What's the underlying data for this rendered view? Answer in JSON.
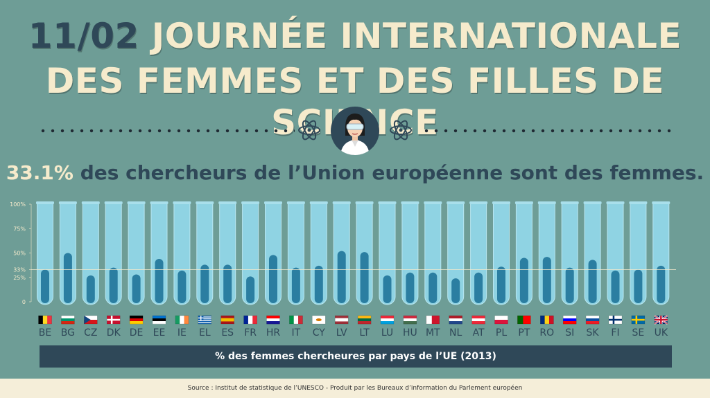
{
  "header": {
    "date": "11/02",
    "title_line1": "JOURNÉE INTERNATIONALE",
    "title_line2": "DES FEMMES ET DES FILLES DE SCIENCE"
  },
  "subtitle": {
    "percent": "33.1%",
    "text": " des chercheurs de l’Union européenne sont des femmes."
  },
  "footer_label": "% des femmes chercheures par pays de l’UE (2013)",
  "source": "Source : Institut de statistique de l’UNESCO - Produit par les Bureaux d’information du Parlement européen",
  "colors": {
    "background": "#6e9d96",
    "title": "#f6ebcc",
    "dark": "#2f4858",
    "tube": "#8fd3e3",
    "liquid": "#2b7ea1"
  },
  "chart_data": {
    "type": "bar",
    "categories": [
      "BE",
      "BG",
      "CZ",
      "DK",
      "DE",
      "EE",
      "IE",
      "EL",
      "ES",
      "FR",
      "HR",
      "IT",
      "CY",
      "LV",
      "LT",
      "LU",
      "HU",
      "MT",
      "NL",
      "AT",
      "PL",
      "PT",
      "RO",
      "SI",
      "SK",
      "FI",
      "SE",
      "UK"
    ],
    "values": [
      33,
      50,
      27,
      35,
      28,
      44,
      32,
      38,
      38,
      26,
      48,
      35,
      37,
      52,
      51,
      27,
      30,
      30,
      24,
      30,
      36,
      45,
      46,
      35,
      43,
      32,
      33,
      37
    ],
    "ylim": [
      0,
      100
    ],
    "yticks": [
      0,
      25,
      33,
      50,
      75,
      100
    ],
    "ytick_labels": [
      "0",
      "25%",
      "33%",
      "50%",
      "75%",
      "100%"
    ],
    "reference_line": 33,
    "flags": [
      {
        "type": "v",
        "colors": [
          "#000000",
          "#fdda24",
          "#ef3340"
        ]
      },
      {
        "type": "h",
        "colors": [
          "#ffffff",
          "#00966e",
          "#d62612"
        ]
      },
      {
        "type": "cz",
        "colors": [
          "#ffffff",
          "#d7141a",
          "#11457e"
        ]
      },
      {
        "type": "nordic",
        "colors": [
          "#c8102e",
          "#ffffff"
        ]
      },
      {
        "type": "h",
        "colors": [
          "#000000",
          "#dd0000",
          "#ffce00"
        ]
      },
      {
        "type": "h",
        "colors": [
          "#0072ce",
          "#000000",
          "#ffffff"
        ]
      },
      {
        "type": "v",
        "colors": [
          "#169b62",
          "#ffffff",
          "#ff883e"
        ]
      },
      {
        "type": "stripes",
        "colors": [
          "#0d5eaf",
          "#ffffff"
        ]
      },
      {
        "type": "h3",
        "colors": [
          "#aa151b",
          "#f1bf00",
          "#aa151b"
        ]
      },
      {
        "type": "v",
        "colors": [
          "#002395",
          "#ffffff",
          "#ed2939"
        ]
      },
      {
        "type": "h",
        "colors": [
          "#ff0000",
          "#ffffff",
          "#171796"
        ]
      },
      {
        "type": "v",
        "colors": [
          "#009246",
          "#ffffff",
          "#ce2b37"
        ]
      },
      {
        "type": "plain",
        "colors": [
          "#ffffff",
          "#d57800"
        ]
      },
      {
        "type": "h3",
        "colors": [
          "#9e3039",
          "#ffffff",
          "#9e3039"
        ]
      },
      {
        "type": "h",
        "colors": [
          "#fdb913",
          "#006a44",
          "#c1272d"
        ]
      },
      {
        "type": "h",
        "colors": [
          "#ed2939",
          "#ffffff",
          "#00a1de"
        ]
      },
      {
        "type": "h",
        "colors": [
          "#cd2a3e",
          "#ffffff",
          "#436f4d"
        ]
      },
      {
        "type": "v2",
        "colors": [
          "#ffffff",
          "#cf142b"
        ]
      },
      {
        "type": "h",
        "colors": [
          "#ae1c28",
          "#ffffff",
          "#21468b"
        ]
      },
      {
        "type": "h",
        "colors": [
          "#ed2939",
          "#ffffff",
          "#ed2939"
        ]
      },
      {
        "type": "h2",
        "colors": [
          "#ffffff",
          "#dc143c"
        ]
      },
      {
        "type": "v2",
        "colors": [
          "#006600",
          "#ff0000"
        ]
      },
      {
        "type": "v",
        "colors": [
          "#002b7f",
          "#fcd116",
          "#ce1126"
        ]
      },
      {
        "type": "h",
        "colors": [
          "#ffffff",
          "#0000ff",
          "#ff0000"
        ]
      },
      {
        "type": "h",
        "colors": [
          "#ffffff",
          "#0b4ea2",
          "#ee1c25"
        ]
      },
      {
        "type": "nordic",
        "colors": [
          "#ffffff",
          "#002f6c"
        ]
      },
      {
        "type": "nordic",
        "colors": [
          "#006aa7",
          "#fecc00"
        ]
      },
      {
        "type": "uk",
        "colors": [
          "#012169",
          "#ffffff",
          "#c8102e"
        ]
      }
    ]
  }
}
